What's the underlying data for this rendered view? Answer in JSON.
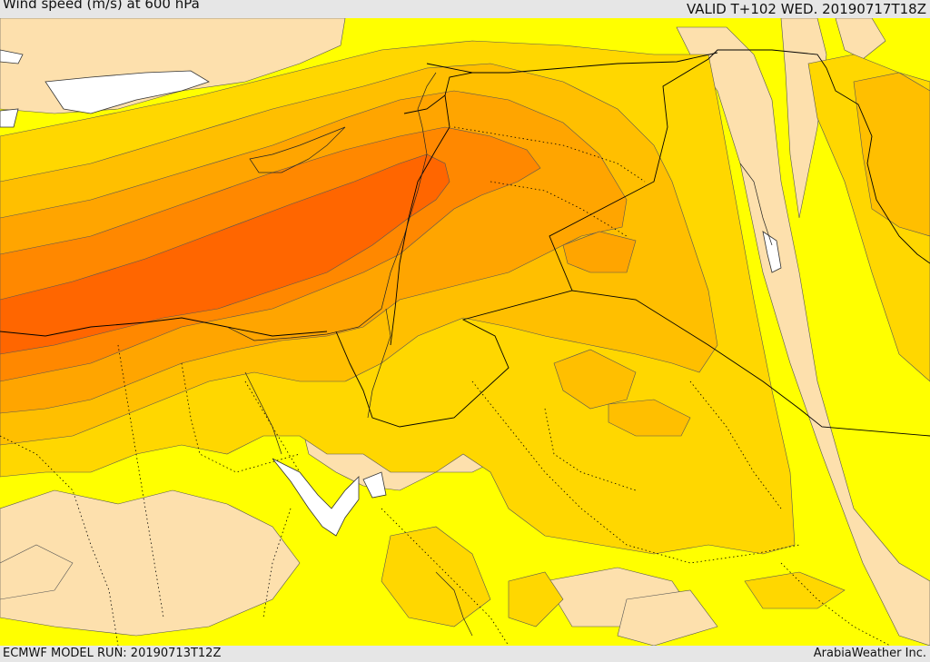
{
  "header": {
    "title": "Wind speed (m/s) at 600 hPa",
    "valid": "VALID T+102 WED. 20190717T18Z"
  },
  "footer": {
    "model_run": "ECMWF MODEL RUN: 20190713T12Z",
    "credit": "ArabiaWeather Inc."
  },
  "colors": {
    "band_0_5": "#fde0ad",
    "band_5_10": "#ffff00",
    "band_10_15": "#ffd700",
    "band_15_20": "#ffbf00",
    "band_20_25": "#ffa500",
    "band_25_30": "#ff8800",
    "band_30_35": "#ff6600",
    "land_water": "#ffffff"
  }
}
